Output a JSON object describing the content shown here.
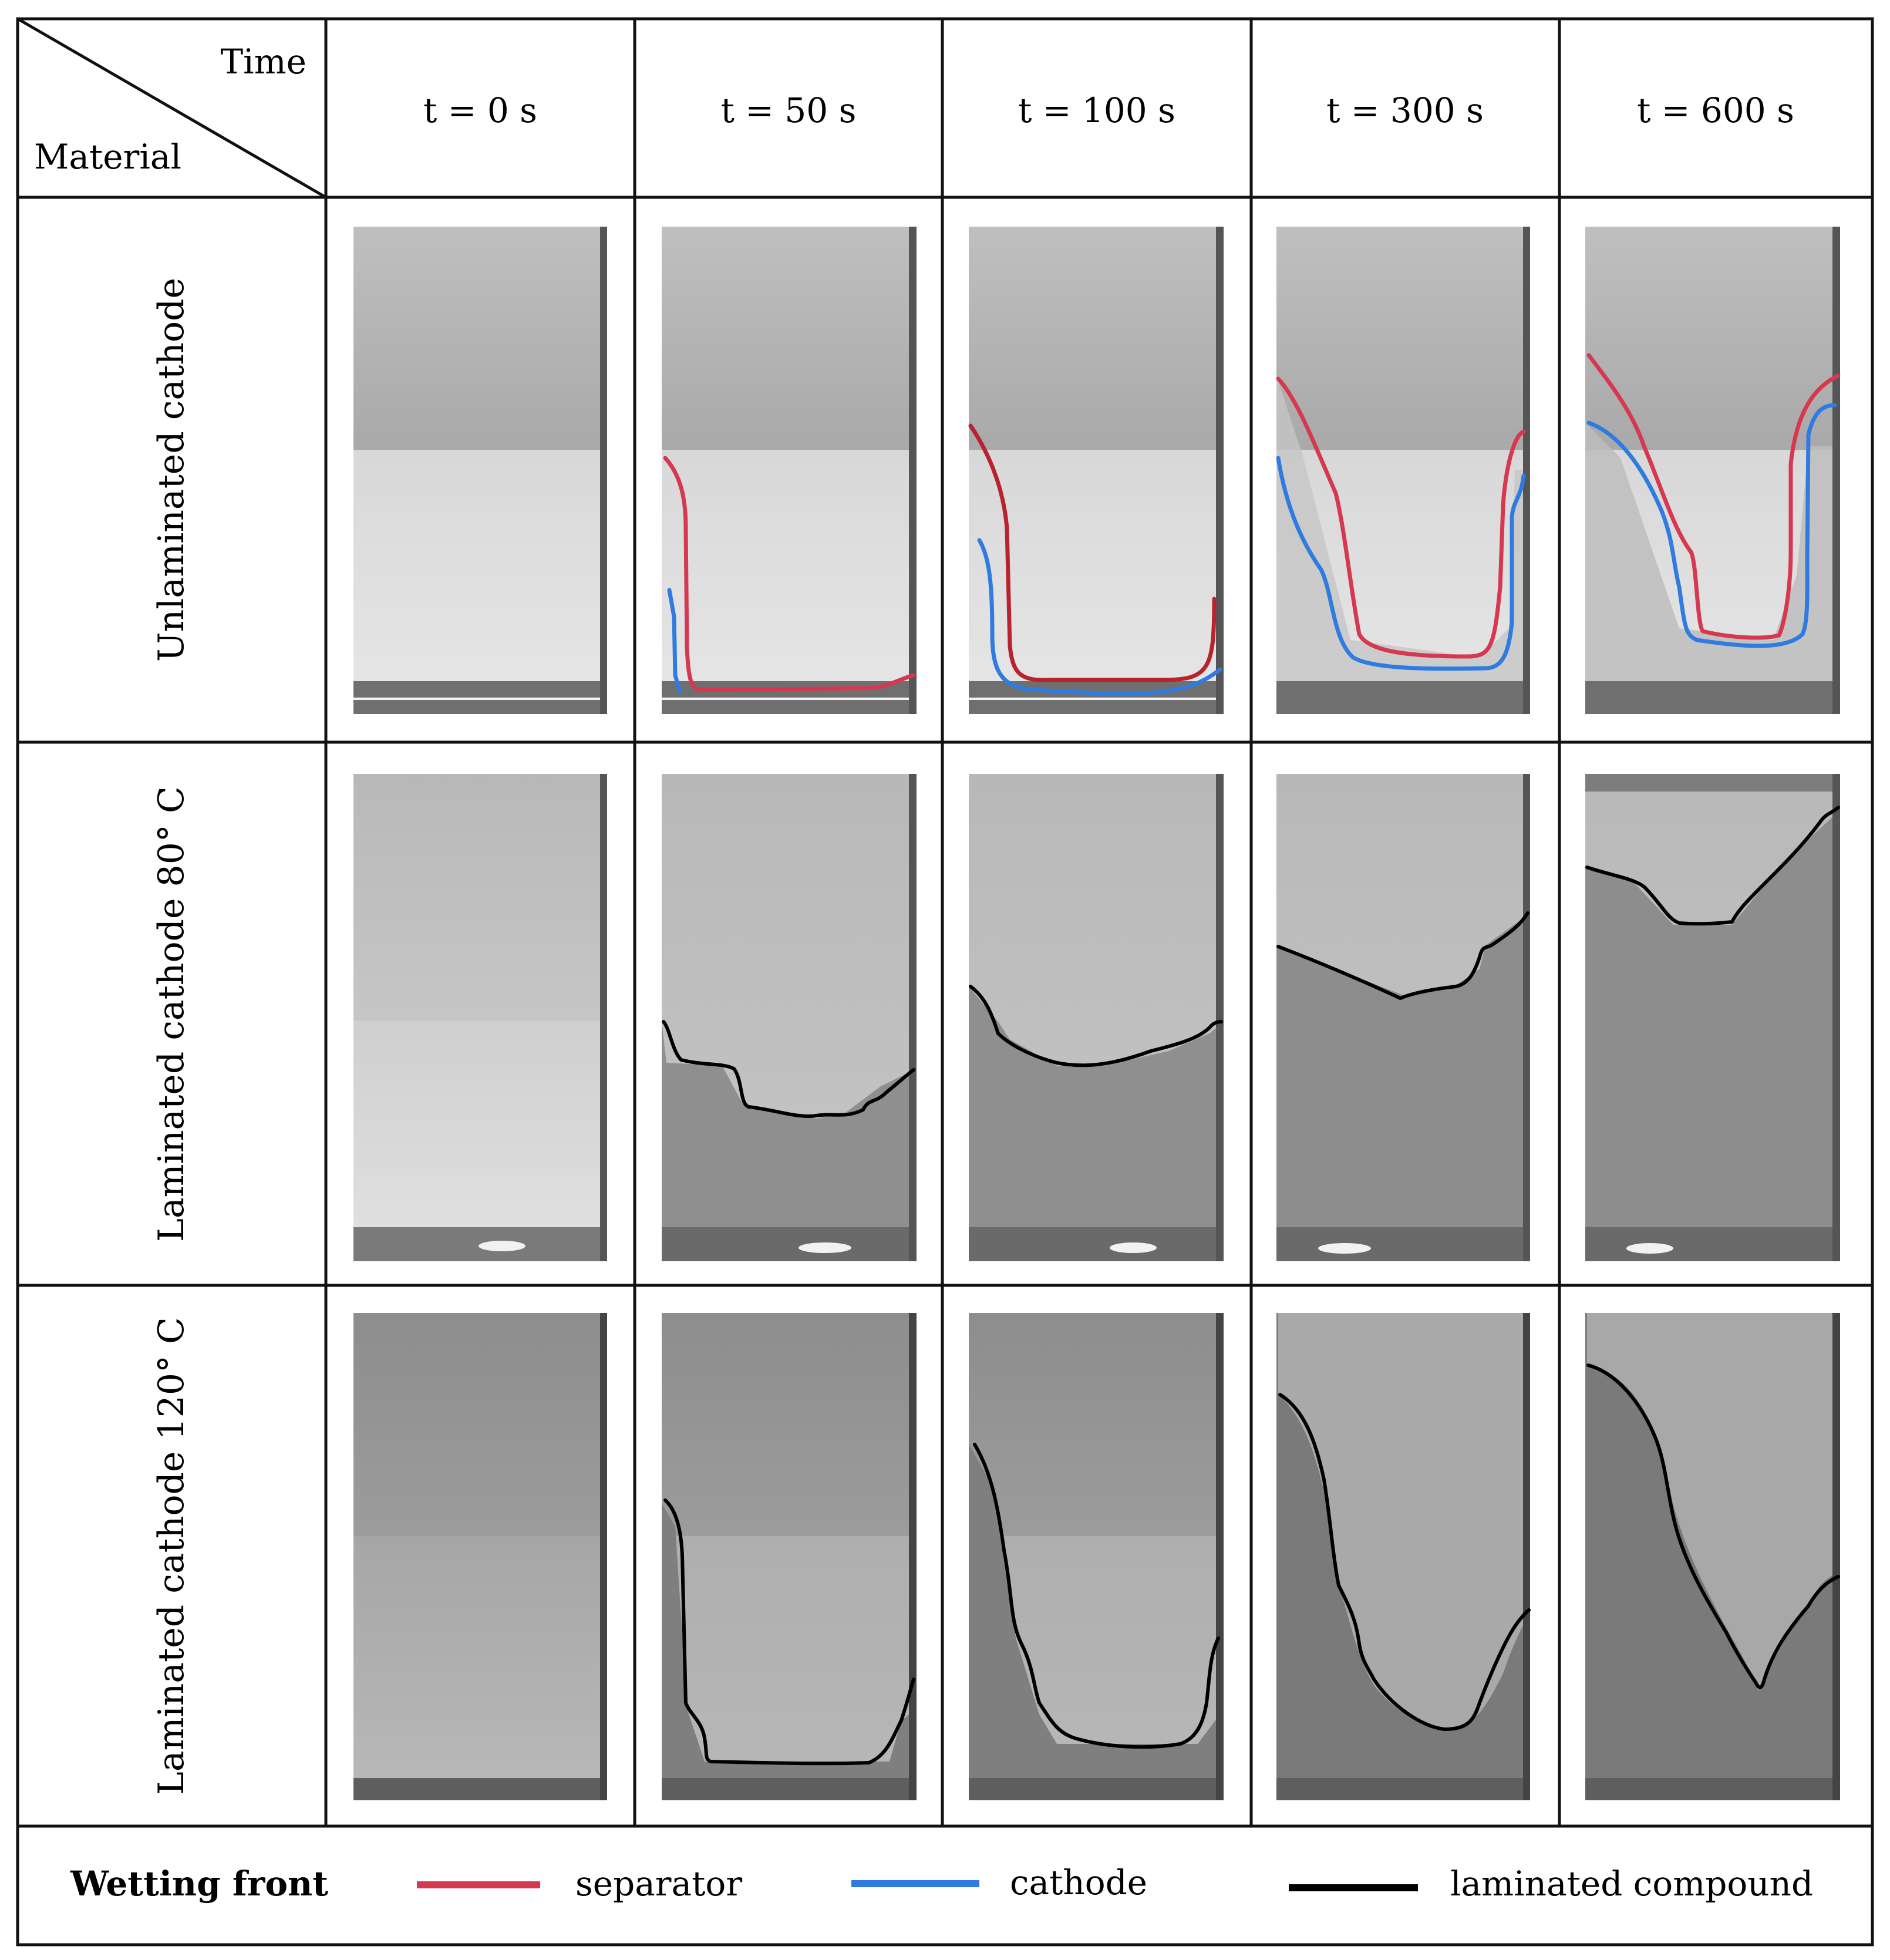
{
  "header": {
    "corner_top": "Time",
    "corner_bottom": "Material",
    "columns": [
      "t = 0 s",
      "t = 50 s",
      "t = 100 s",
      "t = 300 s",
      "t = 600 s"
    ]
  },
  "rows": [
    {
      "label": "Unlaminated cathode"
    },
    {
      "label": "Laminated cathode 80° C"
    },
    {
      "label": "Laminated cathode 120° C"
    }
  ],
  "legend": {
    "title": "Wetting front",
    "items": [
      {
        "label": "separator",
        "color": "#d6394f"
      },
      {
        "label": "cathode",
        "color": "#2f7be0"
      },
      {
        "label": "laminated compound",
        "color": "#000000"
      }
    ]
  }
}
